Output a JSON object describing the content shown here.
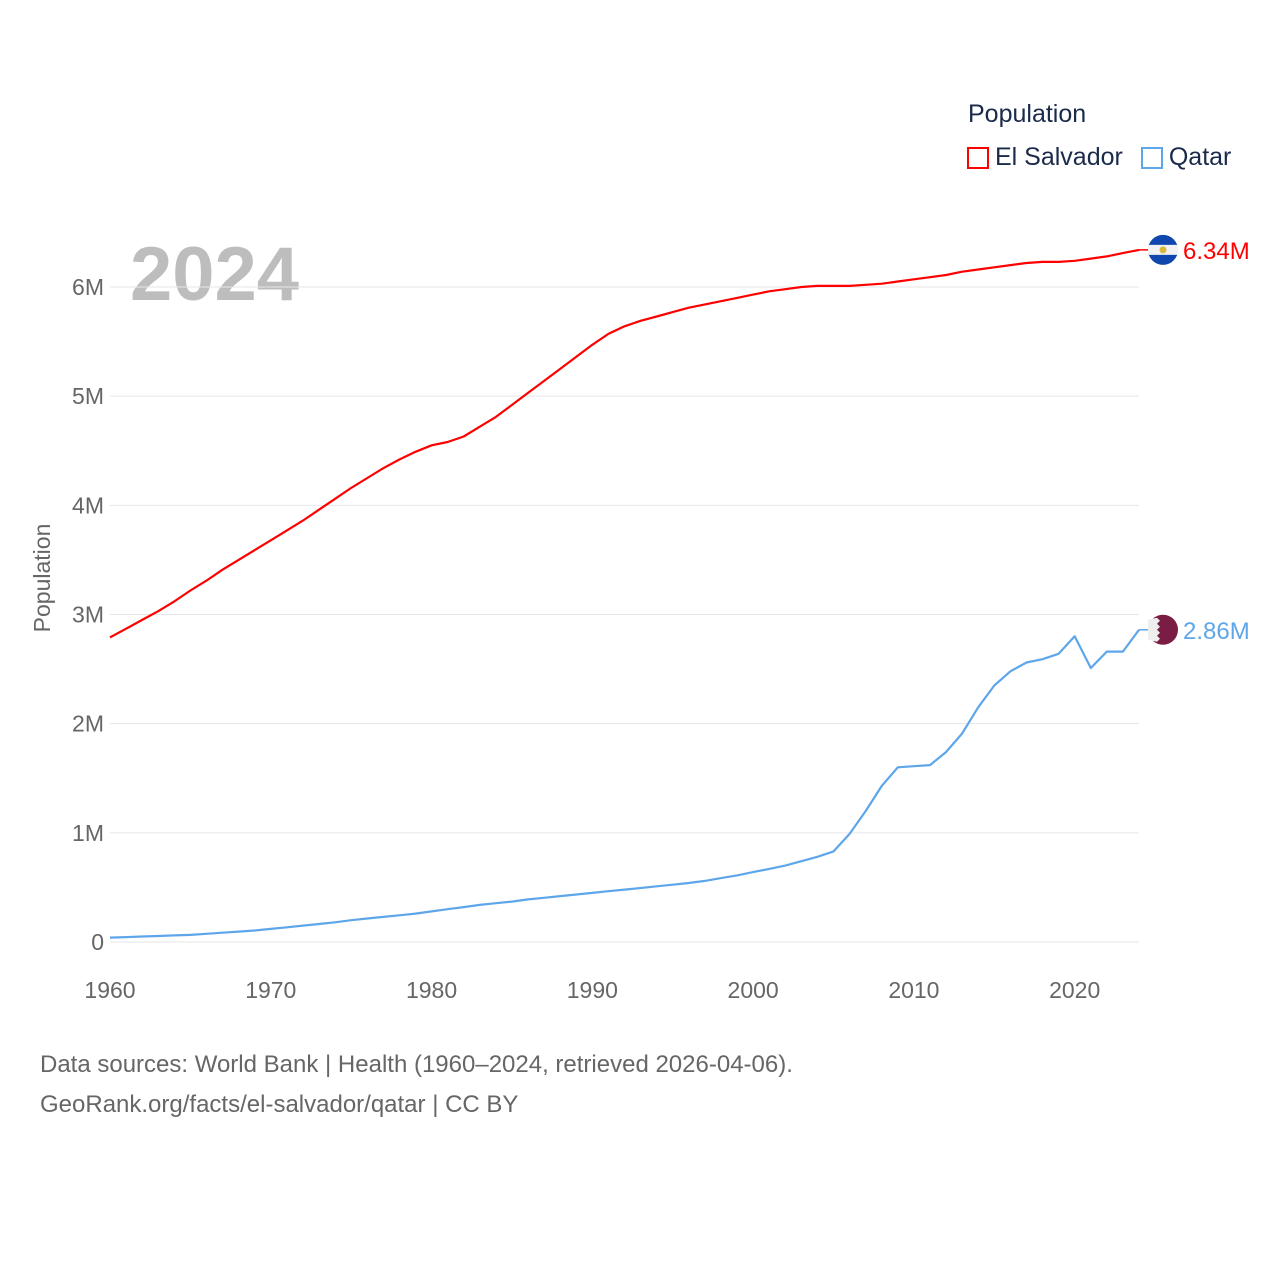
{
  "chart_data": {
    "type": "line",
    "year_label": "2024",
    "ylabel": "Population",
    "xlabel": "",
    "legend_title": "Population",
    "legend_placement": "top-right",
    "xlim": [
      1960,
      2024
    ],
    "ylim": [
      0,
      6.5
    ],
    "x_ticks": [
      "1960",
      "1970",
      "1980",
      "1990",
      "2000",
      "2010",
      "2020"
    ],
    "y_ticks": [
      {
        "v": 0,
        "label": "0"
      },
      {
        "v": 1,
        "label": "1M"
      },
      {
        "v": 2,
        "label": "2M"
      },
      {
        "v": 3,
        "label": "3M"
      },
      {
        "v": 4,
        "label": "4M"
      },
      {
        "v": 5,
        "label": "5M"
      },
      {
        "v": 6,
        "label": "6M"
      }
    ],
    "x_start": 1960,
    "units": "millions",
    "series": [
      {
        "name": "El Salvador",
        "color": "#ff0000",
        "end_label": "6.34M",
        "values": [
          2.79,
          2.87,
          2.95,
          3.03,
          3.12,
          3.22,
          3.31,
          3.41,
          3.5,
          3.59,
          3.68,
          3.77,
          3.86,
          3.96,
          4.06,
          4.16,
          4.25,
          4.34,
          4.42,
          4.49,
          4.55,
          4.58,
          4.63,
          4.72,
          4.81,
          4.92,
          5.03,
          5.14,
          5.25,
          5.36,
          5.47,
          5.57,
          5.64,
          5.69,
          5.73,
          5.77,
          5.81,
          5.84,
          5.87,
          5.9,
          5.93,
          5.96,
          5.98,
          6.0,
          6.01,
          6.01,
          6.01,
          6.02,
          6.03,
          6.05,
          6.07,
          6.09,
          6.11,
          6.14,
          6.16,
          6.18,
          6.2,
          6.22,
          6.23,
          6.23,
          6.24,
          6.26,
          6.28,
          6.31,
          6.34
        ]
      },
      {
        "name": "Qatar",
        "color": "#5ea6ea",
        "end_label": "2.86M",
        "values": [
          0.04,
          0.045,
          0.05,
          0.055,
          0.06,
          0.065,
          0.075,
          0.085,
          0.095,
          0.105,
          0.12,
          0.135,
          0.15,
          0.165,
          0.18,
          0.2,
          0.215,
          0.23,
          0.245,
          0.26,
          0.28,
          0.3,
          0.32,
          0.34,
          0.355,
          0.37,
          0.39,
          0.405,
          0.42,
          0.435,
          0.45,
          0.465,
          0.48,
          0.495,
          0.51,
          0.525,
          0.54,
          0.56,
          0.585,
          0.61,
          0.64,
          0.67,
          0.7,
          0.74,
          0.78,
          0.83,
          0.99,
          1.2,
          1.43,
          1.6,
          1.61,
          1.62,
          1.74,
          1.91,
          2.15,
          2.35,
          2.48,
          2.56,
          2.59,
          2.64,
          2.8,
          2.51,
          2.66,
          2.66,
          2.86
        ]
      }
    ]
  },
  "source": {
    "line1": "Data sources: World Bank | Health (1960–2024, retrieved 2026-04-06).",
    "line2": "GeoRank.org/facts/el-salvador/qatar | CC BY"
  }
}
